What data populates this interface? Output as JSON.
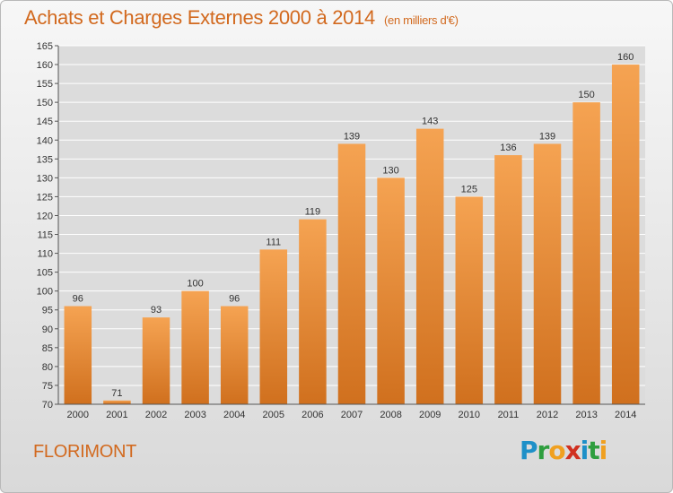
{
  "title": "Achats et Charges Externes 2000 à 2014",
  "unit": "(en milliers d'€)",
  "location": "FLORIMONT",
  "logo": {
    "letters": [
      "P",
      "r",
      "o",
      "x",
      "i",
      "t",
      "i"
    ],
    "colors": [
      "#1e90c8",
      "#2e9e3e",
      "#f0a020",
      "#d03020",
      "#1e90c8",
      "#2e9e3e",
      "#f0a020"
    ]
  },
  "colors": {
    "bar_top": "#f5a352",
    "bar_bottom": "#d0701e",
    "text": "#333333",
    "title": "#d2691e",
    "grid": "#ffffff"
  },
  "chart_data": {
    "type": "bar",
    "categories": [
      "2000",
      "2001",
      "2002",
      "2003",
      "2004",
      "2005",
      "2006",
      "2007",
      "2008",
      "2009",
      "2010",
      "2011",
      "2012",
      "2013",
      "2014"
    ],
    "values": [
      96,
      71,
      93,
      100,
      96,
      111,
      119,
      139,
      130,
      143,
      125,
      136,
      139,
      150,
      160
    ],
    "ylim": [
      70,
      165
    ],
    "yticks": [
      70,
      75,
      80,
      85,
      90,
      95,
      100,
      105,
      110,
      115,
      120,
      125,
      130,
      135,
      140,
      145,
      150,
      155,
      160,
      165
    ],
    "grid": true,
    "data_labels": true
  }
}
